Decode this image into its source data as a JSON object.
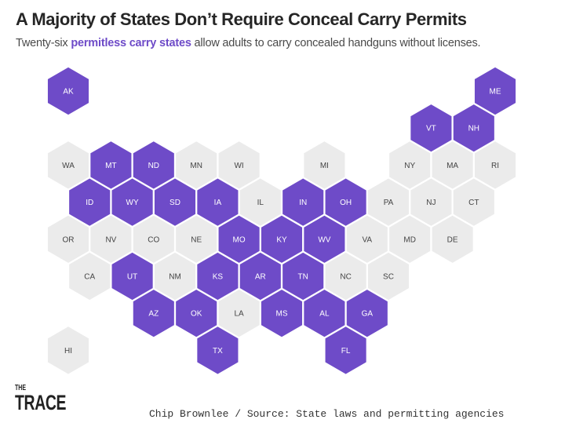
{
  "header": {
    "title": "A Majority of States Don’t Require Conceal Carry Permits",
    "subtitle_prefix": "Twenty-six ",
    "subtitle_highlight": "permitless carry states",
    "subtitle_suffix": " allow adults to carry concealed handguns without licenses."
  },
  "colors": {
    "permitless": "#6e4bc8",
    "permit_required": "#ebebeb",
    "label_on_permitless": "#ffffff",
    "label_on_permit_required": "#444444"
  },
  "states": [
    {
      "abbr": "AK",
      "permitless": true
    },
    {
      "abbr": "ME",
      "permitless": true
    },
    {
      "abbr": "VT",
      "permitless": true
    },
    {
      "abbr": "NH",
      "permitless": true
    },
    {
      "abbr": "WA",
      "permitless": false
    },
    {
      "abbr": "MT",
      "permitless": true
    },
    {
      "abbr": "ND",
      "permitless": true
    },
    {
      "abbr": "MN",
      "permitless": false
    },
    {
      "abbr": "WI",
      "permitless": false
    },
    {
      "abbr": "MI",
      "permitless": false
    },
    {
      "abbr": "NY",
      "permitless": false
    },
    {
      "abbr": "MA",
      "permitless": false
    },
    {
      "abbr": "RI",
      "permitless": false
    },
    {
      "abbr": "ID",
      "permitless": true
    },
    {
      "abbr": "WY",
      "permitless": true
    },
    {
      "abbr": "SD",
      "permitless": true
    },
    {
      "abbr": "IA",
      "permitless": true
    },
    {
      "abbr": "IL",
      "permitless": false
    },
    {
      "abbr": "IN",
      "permitless": true
    },
    {
      "abbr": "OH",
      "permitless": true
    },
    {
      "abbr": "PA",
      "permitless": false
    },
    {
      "abbr": "NJ",
      "permitless": false
    },
    {
      "abbr": "CT",
      "permitless": false
    },
    {
      "abbr": "OR",
      "permitless": false
    },
    {
      "abbr": "NV",
      "permitless": false
    },
    {
      "abbr": "CO",
      "permitless": false
    },
    {
      "abbr": "NE",
      "permitless": false
    },
    {
      "abbr": "MO",
      "permitless": true
    },
    {
      "abbr": "KY",
      "permitless": true
    },
    {
      "abbr": "WV",
      "permitless": true
    },
    {
      "abbr": "VA",
      "permitless": false
    },
    {
      "abbr": "MD",
      "permitless": false
    },
    {
      "abbr": "DE",
      "permitless": false
    },
    {
      "abbr": "CA",
      "permitless": false
    },
    {
      "abbr": "UT",
      "permitless": true
    },
    {
      "abbr": "NM",
      "permitless": false
    },
    {
      "abbr": "KS",
      "permitless": true
    },
    {
      "abbr": "AR",
      "permitless": true
    },
    {
      "abbr": "TN",
      "permitless": true
    },
    {
      "abbr": "NC",
      "permitless": false
    },
    {
      "abbr": "SC",
      "permitless": false
    },
    {
      "abbr": "AZ",
      "permitless": true
    },
    {
      "abbr": "OK",
      "permitless": true
    },
    {
      "abbr": "LA",
      "permitless": false
    },
    {
      "abbr": "MS",
      "permitless": true
    },
    {
      "abbr": "AL",
      "permitless": true
    },
    {
      "abbr": "GA",
      "permitless": true
    },
    {
      "abbr": "HI",
      "permitless": false
    },
    {
      "abbr": "TX",
      "permitless": true
    },
    {
      "abbr": "FL",
      "permitless": true
    }
  ],
  "footer": {
    "logo": "THE TRACE",
    "logo_line1": "THE",
    "logo_line2": "TRACE",
    "credit": "Chip Brownlee / Source: State laws and permitting agencies"
  }
}
